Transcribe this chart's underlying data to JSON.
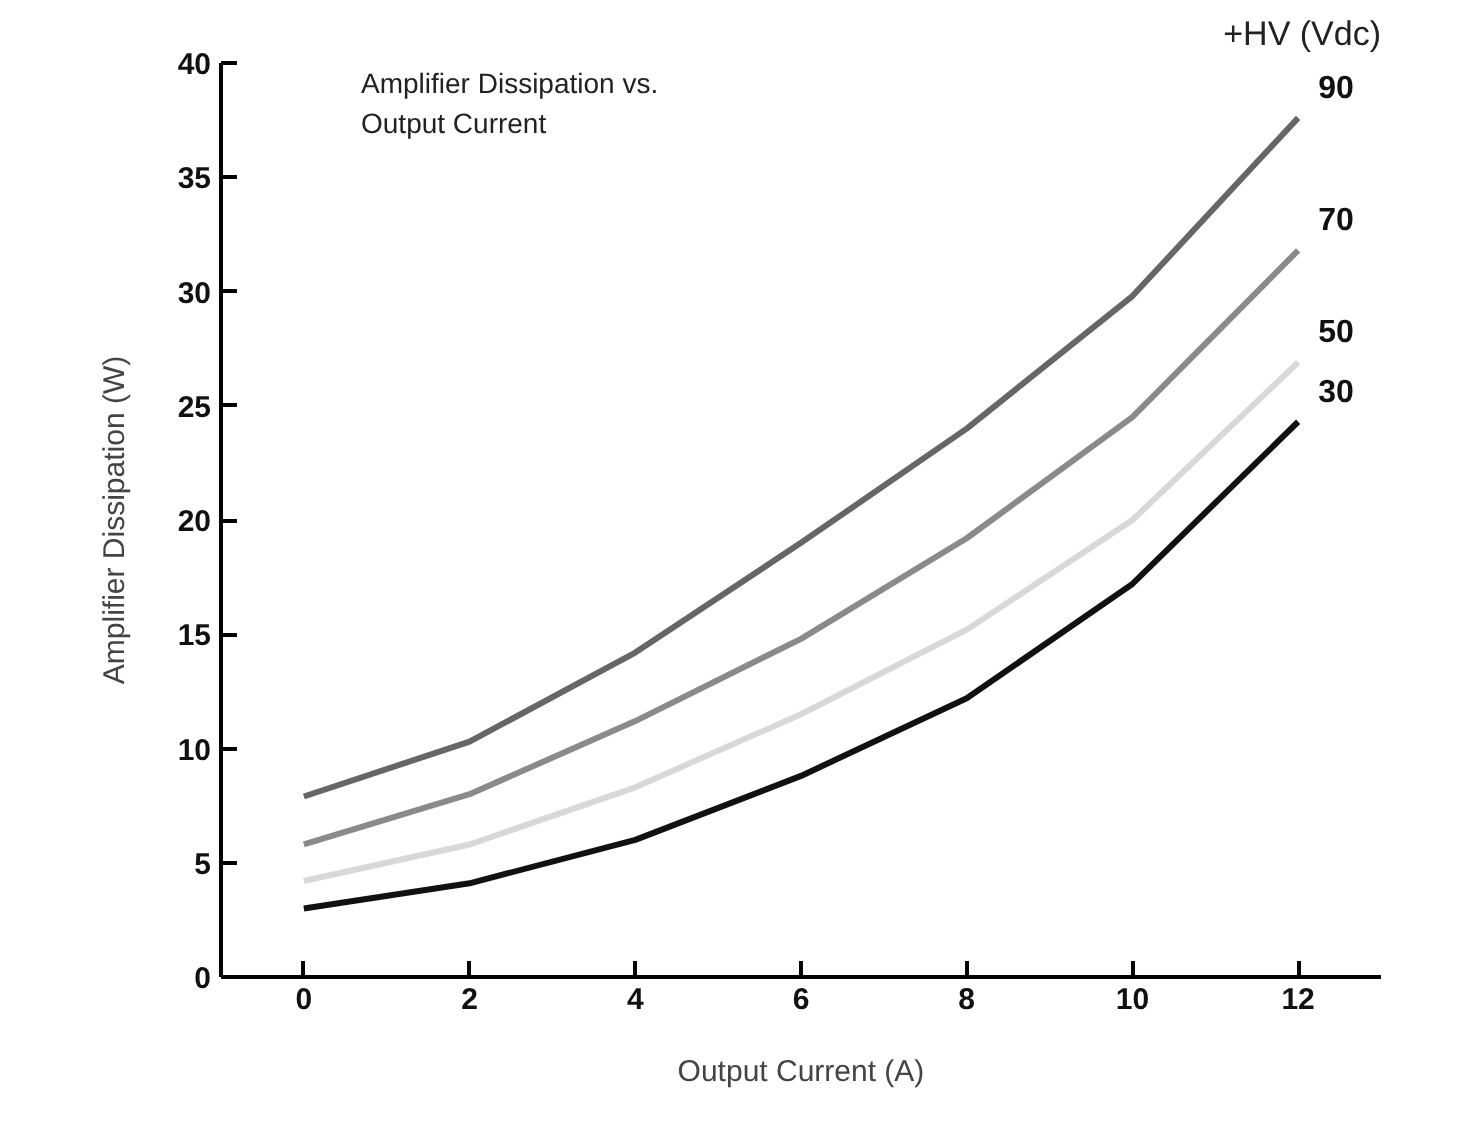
{
  "chart_data": {
    "type": "line",
    "title": "Amplifier Dissipation vs.\nOutput Current",
    "xlabel": "Output Current (A)",
    "ylabel": "Amplifier Dissipation (W)",
    "legend_title": "+HV (Vdc)",
    "x": [
      0,
      2,
      4,
      6,
      8,
      10,
      12
    ],
    "series": [
      {
        "name": "90",
        "color": "#666666",
        "values": [
          7.9,
          10.3,
          14.2,
          19,
          24,
          29.8,
          37.6
        ]
      },
      {
        "name": "70",
        "color": "#8a8a8a",
        "values": [
          5.8,
          8,
          11.2,
          14.8,
          19.2,
          24.5,
          31.8
        ]
      },
      {
        "name": "50",
        "color": "#d8d8d8",
        "values": [
          4.2,
          5.8,
          8.3,
          11.5,
          15.2,
          20,
          26.9
        ]
      },
      {
        "name": "30",
        "color": "#111111",
        "values": [
          3,
          4.1,
          6,
          8.8,
          12.2,
          17.2,
          24.3
        ]
      }
    ],
    "xlim": [
      -1,
      13
    ],
    "ylim": [
      0,
      40
    ],
    "xticks": [
      0,
      2,
      4,
      6,
      8,
      10,
      12
    ],
    "yticks": [
      0,
      5,
      10,
      15,
      20,
      25,
      30,
      35,
      40
    ],
    "grid": false
  }
}
